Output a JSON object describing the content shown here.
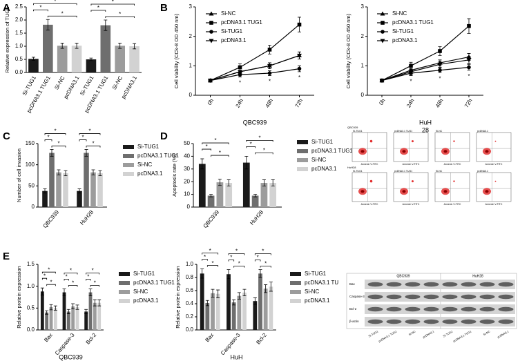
{
  "panel_labels": [
    "A",
    "B",
    "C",
    "D",
    "E"
  ],
  "chart_data": [
    {
      "type": "bar",
      "y_label": "Relative expression of TUG1",
      "categories": [
        "Si-TUG1",
        "pcDNA3.1 TUG1",
        "Si-NC",
        "pcDNA3.1",
        "Si-TUG1",
        "pcDNA3.1 TUG1",
        "Si-NC",
        "pcDNA3.1"
      ],
      "values": [
        0.52,
        1.82,
        1.02,
        1.02,
        0.5,
        1.8,
        1.02,
        1.0
      ],
      "errors": [
        0.06,
        0.2,
        0.1,
        0.1,
        0.05,
        0.2,
        0.1,
        0.1
      ],
      "colors": [
        "#1a1a1a",
        "#6e6e6e",
        "#9c9c9c",
        "#d2d2d2",
        "#1a1a1a",
        "#6e6e6e",
        "#9c9c9c",
        "#d2d2d2"
      ],
      "ylim": [
        0,
        2.5
      ],
      "yticks": [
        {
          "value": 0,
          "label": "0.0"
        },
        0.5,
        {
          "value": 1,
          "label": "1.0"
        },
        1.5,
        {
          "value": 2,
          "label": "2.0"
        },
        2.5
      ],
      "brackets": [
        {
          "group": 0,
          "from": 0,
          "to": 3,
          "label": "*"
        },
        {
          "group": 0,
          "from": 0,
          "to": 1,
          "label": "*"
        },
        {
          "group": 0,
          "from": 1,
          "to": 3,
          "label": "*"
        },
        {
          "group": 1,
          "from": 4,
          "to": 7,
          "label": "*"
        },
        {
          "group": 1,
          "from": 4,
          "to": 5,
          "label": "*"
        },
        {
          "group": 1,
          "from": 5,
          "to": 7,
          "label": "*"
        }
      ]
    },
    {
      "type": "line",
      "y_label": "Cell viability (CCk-8 OD 450 nm)",
      "x_label": "QBC939",
      "categories": [
        "0h",
        "24h",
        "48h",
        "72h"
      ],
      "series": [
        {
          "name": "Si-NC",
          "color": "#000000",
          "marker": "triangle",
          "values": [
            0.5,
            0.8,
            1.0,
            1.35
          ],
          "errors": [
            0.03,
            0.1,
            0.1,
            0.12
          ]
        },
        {
          "name": "pcDNA3.1 TUG1",
          "color": "#000000",
          "marker": "square",
          "values": [
            0.5,
            0.95,
            1.55,
            2.4
          ],
          "errors": [
            0.03,
            0.12,
            0.15,
            0.25
          ]
        },
        {
          "name": "Si-TUG1",
          "color": "#000000",
          "marker": "circle",
          "values": [
            0.5,
            0.7,
            0.75,
            0.9
          ],
          "errors": [
            0.03,
            0.08,
            0.08,
            0.1
          ]
        },
        {
          "name": "pcDNA3.1",
          "color": "#000000",
          "marker": "triangle-down",
          "values": [
            0.5,
            0.8,
            1.0,
            1.35
          ],
          "errors": [
            0.03,
            0.1,
            0.1,
            0.12
          ]
        }
      ],
      "point_annotations": [
        null,
        "*",
        "*",
        "*"
      ],
      "ylim": [
        0,
        3
      ],
      "yticks": [
        0,
        1,
        2,
        3
      ]
    },
    {
      "type": "line",
      "y_label": "Cell viability (CCk-8 OD 450 nm)",
      "x_label": [
        "HuH",
        "28"
      ],
      "categories": [
        "0h",
        "24h",
        "48h",
        "72h"
      ],
      "series": [
        {
          "name": "Si-NC",
          "color": "#000000",
          "marker": "triangle",
          "values": [
            0.5,
            0.85,
            1.1,
            1.3
          ],
          "errors": [
            0.03,
            0.1,
            0.1,
            0.12
          ]
        },
        {
          "name": "pcDNA3.1 TUG1",
          "color": "#000000",
          "marker": "square",
          "values": [
            0.5,
            1.0,
            1.5,
            2.35
          ],
          "errors": [
            0.03,
            0.12,
            0.15,
            0.25
          ]
        },
        {
          "name": "Si-TUG1",
          "color": "#000000",
          "marker": "circle",
          "values": [
            0.5,
            0.75,
            0.85,
            0.95
          ],
          "errors": [
            0.03,
            0.08,
            0.08,
            0.1
          ]
        },
        {
          "name": "pcDNA3.1",
          "color": "#000000",
          "marker": "triangle-down",
          "values": [
            0.5,
            0.8,
            1.05,
            1.2
          ],
          "errors": [
            0.03,
            0.1,
            0.1,
            0.12
          ]
        }
      ],
      "point_annotations": [
        null,
        "*",
        "*",
        "*"
      ],
      "ylim": [
        0,
        3
      ],
      "yticks": [
        0,
        1,
        2,
        3
      ]
    },
    {
      "type": "grouped_bar",
      "y_label": "Number of cell invasion",
      "categories": [
        "QBC939",
        "HuH28"
      ],
      "series": [
        {
          "name": "Si-TUG1",
          "color": "#1a1a1a",
          "values": [
            38,
            38
          ],
          "errors": [
            5,
            5
          ]
        },
        {
          "name": "pcDNA3.1 TUG1",
          "color": "#6e6e6e",
          "values": [
            128,
            128
          ],
          "errors": [
            8,
            8
          ]
        },
        {
          "name": "Si-NC",
          "color": "#9c9c9c",
          "values": [
            82,
            82
          ],
          "errors": [
            6,
            6
          ]
        },
        {
          "name": "pcDNA3.1",
          "color": "#d2d2d2",
          "values": [
            80,
            80
          ],
          "errors": [
            6,
            6
          ]
        }
      ],
      "ylim": [
        0,
        150
      ],
      "yticks": [
        0,
        50,
        100,
        150
      ],
      "brackets": [
        {
          "group": 0,
          "from": 0,
          "to": 3,
          "label": "*"
        },
        {
          "group": 0,
          "from": 0,
          "to": 1,
          "label": "*"
        },
        {
          "group": 0,
          "from": 1,
          "to": 3,
          "label": "*"
        },
        {
          "group": 1,
          "from": 0,
          "to": 3,
          "label": "*"
        },
        {
          "group": 1,
          "from": 0,
          "to": 1,
          "label": "*"
        },
        {
          "group": 1,
          "from": 1,
          "to": 3,
          "label": "*"
        }
      ]
    },
    {
      "type": "grouped_bar",
      "y_label": "Apoptosis rate (%)",
      "categories": [
        "QBC939",
        "HuH28"
      ],
      "series": [
        {
          "name": "Si-TUG1",
          "color": "#1a1a1a",
          "values": [
            34,
            35
          ],
          "errors": [
            4,
            5
          ]
        },
        {
          "name": "pcDNA3.1 TUG1",
          "color": "#6e6e6e",
          "values": [
            9,
            9
          ],
          "errors": [
            1,
            1
          ]
        },
        {
          "name": "Si-NC",
          "color": "#9c9c9c",
          "values": [
            19.5,
            19
          ],
          "errors": [
            2.5,
            2.5
          ]
        },
        {
          "name": "pcDNA3.1",
          "color": "#d2d2d2",
          "values": [
            19,
            19
          ],
          "errors": [
            2.5,
            2.5
          ]
        }
      ],
      "ylim": [
        0,
        50
      ],
      "yticks": [
        0,
        10,
        20,
        30,
        40,
        50
      ],
      "brackets": [
        {
          "group": 0,
          "from": 0,
          "to": 3,
          "label": "*"
        },
        {
          "group": 0,
          "from": 0,
          "to": 1,
          "label": "*"
        },
        {
          "group": 0,
          "from": 1,
          "to": 3,
          "label": "*"
        },
        {
          "group": 1,
          "from": 0,
          "to": 3,
          "label": "*"
        },
        {
          "group": 1,
          "from": 0,
          "to": 1,
          "label": "*"
        },
        {
          "group": 1,
          "from": 1,
          "to": 3,
          "label": "*"
        }
      ]
    },
    {
      "type": "grouped_bar",
      "y_label": "Relative protein expression",
      "x_label": "QBC939",
      "categories": [
        "Bax",
        "Caspase-3",
        "Bcl-2"
      ],
      "series": [
        {
          "name": "Si-TUG1",
          "color": "#1a1a1a",
          "values": [
            0.88,
            0.86,
            0.42
          ],
          "errors": [
            0.08,
            0.08,
            0.05
          ]
        },
        {
          "name": "pcDNA3.1 TUG1",
          "color": "#6e6e6e",
          "values": [
            0.4,
            0.42,
            0.86
          ],
          "errors": [
            0.04,
            0.05,
            0.08
          ]
        },
        {
          "name": "Si-NC",
          "color": "#9c9c9c",
          "values": [
            0.52,
            0.54,
            0.62
          ],
          "errors": [
            0.06,
            0.06,
            0.07
          ]
        },
        {
          "name": "pcDNA3.1",
          "color": "#d2d2d2",
          "values": [
            0.5,
            0.52,
            0.62
          ],
          "errors": [
            0.05,
            0.05,
            0.07
          ]
        }
      ],
      "ylim": [
        0,
        1.5
      ],
      "yticks": [
        {
          "value": 0,
          "label": "0.0"
        },
        0.5,
        {
          "value": 1,
          "label": "1.0"
        },
        1.5
      ],
      "brackets": [
        {
          "group": 0,
          "from": 0,
          "to": 3,
          "label": "*"
        },
        {
          "group": 0,
          "from": 0,
          "to": 1,
          "label": "*"
        },
        {
          "group": 0,
          "from": 1,
          "to": 3,
          "label": "*"
        },
        {
          "group": 1,
          "from": 0,
          "to": 3,
          "label": "*"
        },
        {
          "group": 1,
          "from": 0,
          "to": 1,
          "label": "*"
        },
        {
          "group": 1,
          "from": 1,
          "to": 3,
          "label": "*"
        },
        {
          "group": 2,
          "from": 0,
          "to": 3,
          "label": "*"
        },
        {
          "group": 2,
          "from": 0,
          "to": 1,
          "label": "*"
        },
        {
          "group": 2,
          "from": 1,
          "to": 3,
          "label": "*"
        }
      ]
    },
    {
      "type": "grouped_bar",
      "y_label": "Relative protein expression",
      "x_label": [
        "HuH",
        "28"
      ],
      "categories": [
        "Bax",
        "Caspase-3",
        "Bcl-2"
      ],
      "series": [
        {
          "name": "Si-TUG1",
          "color": "#1a1a1a",
          "values": [
            0.86,
            0.85,
            0.44
          ],
          "errors": [
            0.07,
            0.07,
            0.05
          ]
        },
        {
          "name": "pcDNA3.1 TU",
          "color": "#6e6e6e",
          "values": [
            0.41,
            0.42,
            0.86
          ],
          "errors": [
            0.04,
            0.04,
            0.06
          ]
        },
        {
          "name": "Si-NC",
          "color": "#9c9c9c",
          "values": [
            0.56,
            0.52,
            0.63
          ],
          "errors": [
            0.06,
            0.05,
            0.06
          ]
        },
        {
          "name": "pcDNA3.1",
          "color": "#d2d2d2",
          "values": [
            0.55,
            0.57,
            0.66
          ],
          "errors": [
            0.06,
            0.05,
            0.07
          ]
        }
      ],
      "ylim": [
        0,
        1
      ],
      "yticks": [
        {
          "value": 0,
          "label": "0.0"
        },
        0.2,
        0.4,
        0.6,
        0.8,
        {
          "value": 1,
          "label": "1.0"
        }
      ],
      "brackets": [
        {
          "group": 0,
          "from": 0,
          "to": 3,
          "label": "*"
        },
        {
          "group": 0,
          "from": 0,
          "to": 1,
          "label": "*"
        },
        {
          "group": 0,
          "from": 1,
          "to": 3,
          "label": "*"
        },
        {
          "group": 1,
          "from": 0,
          "to": 3,
          "label": "*"
        },
        {
          "group": 1,
          "from": 0,
          "to": 1,
          "label": "*"
        },
        {
          "group": 1,
          "from": 1,
          "to": 3,
          "label": "*"
        },
        {
          "group": 2,
          "from": 0,
          "to": 3,
          "label": "*"
        },
        {
          "group": 2,
          "from": 0,
          "to": 1,
          "label": "*"
        },
        {
          "group": 2,
          "from": 1,
          "to": 3,
          "label": "*"
        }
      ]
    }
  ],
  "flow_cytometry": {
    "x_label": "Annexin V-FITC",
    "rows": [
      {
        "label": "QBC939",
        "plots": [
          "Si-TUG1",
          "pcDNA3.1 TUG1",
          "Si-NC",
          "pcDNA3.1"
        ]
      },
      {
        "label": "HuH28",
        "plots": [
          "Si-TUG1",
          "pcDNA3.1 TUG1",
          "Si-NC",
          "pcDNA3.1"
        ]
      }
    ]
  },
  "western_blot": {
    "groups": [
      "QBC939",
      "HuH28"
    ],
    "rows": [
      "Bax",
      "Caspase-3",
      "Bcl-2",
      "β-actin"
    ],
    "lanes": [
      "Si-TUG1",
      "pcDNA3.1 TUG1",
      "Si-NC",
      "pcDNA3.1",
      "Si-TUG1",
      "pcDNA3.1 TUG1",
      "Si-NC",
      "pcDNA3.1"
    ]
  }
}
